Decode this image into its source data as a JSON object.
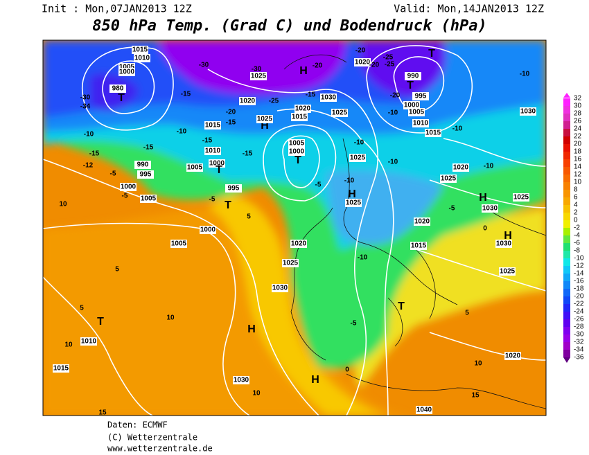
{
  "header": {
    "init": "Init : Mon,07JAN2013 12Z",
    "valid": "Valid: Mon,14JAN2013 12Z",
    "title": "850 hPa Temp. (Grad C) und Bodendruck (hPa)"
  },
  "colorbar": {
    "levels": [
      "32",
      "30",
      "28",
      "26",
      "24",
      "22",
      "20",
      "18",
      "16",
      "14",
      "12",
      "10",
      "8",
      "6",
      "4",
      "2",
      "0",
      "-2",
      "-4",
      "-6",
      "-8",
      "-10",
      "-12",
      "-14",
      "-16",
      "-18",
      "-20",
      "-22",
      "-24",
      "-26",
      "-28",
      "-30",
      "-32",
      "-34",
      "-36"
    ],
    "colors": [
      "#ff20ff",
      "#f030e0",
      "#e030c0",
      "#d02090",
      "#c81040",
      "#d00000",
      "#e81000",
      "#f02800",
      "#f84000",
      "#f85800",
      "#f86c00",
      "#f88000",
      "#f89400",
      "#f8a800",
      "#f8c000",
      "#f8d800",
      "#f0f000",
      "#a8f000",
      "#60e840",
      "#20e070",
      "#20e8a8",
      "#10e8e8",
      "#10c8f8",
      "#10a8f8",
      "#1088f8",
      "#1068f8",
      "#1048f8",
      "#2028f8",
      "#4010f8",
      "#6000f0",
      "#8000f0",
      "#9800e8",
      "#a000c8",
      "#8000a0",
      "#600080"
    ]
  },
  "map": {
    "labels": [
      "1015",
      "1010",
      "1005",
      "1000",
      "980",
      "-30",
      "-34",
      "T",
      "-30",
      "-30",
      "1025",
      "H",
      "-20",
      "1020",
      "-25",
      "-15",
      "-20",
      "-15",
      "1015",
      "H",
      "1025",
      "1020",
      "1015",
      "1030",
      "-15",
      "1025",
      "-20",
      "1020",
      "-20",
      "-25",
      "-25",
      "T",
      "990",
      "T",
      "-20",
      "995",
      "1000",
      "-10",
      "1005",
      "1010",
      "1015",
      "-10",
      "-10",
      "1030",
      "-10",
      "-10",
      "-15",
      "1010",
      "-15",
      "1005",
      "1000",
      "T",
      "-10",
      "1025",
      "-10",
      "-10",
      "1020",
      "-15",
      "-15",
      "-12",
      "990",
      "1005",
      "1000",
      "T",
      "-5",
      "995",
      "1000",
      "1005",
      "-5",
      "995",
      "-5",
      "T",
      "-5",
      "-10",
      "H",
      "1025",
      "1025",
      "-5",
      "H",
      "1030",
      "1025",
      "10",
      "5",
      "1000",
      "1005",
      "1020",
      "1020",
      "0",
      "H",
      "1030",
      "1015",
      "-10",
      "1025",
      "1025",
      "5",
      "1030",
      "5",
      "T",
      "10",
      "H",
      "T",
      "-5",
      "5",
      "1010",
      "10",
      "1015",
      "1030",
      "H",
      "10",
      "10",
      "1020",
      "15",
      "15",
      "1040",
      "0"
    ]
  },
  "footer": {
    "source": "Daten: ECMWF",
    "copyright": "(C) Wetterzentrale",
    "url": "www.wetterzentrale.de"
  }
}
